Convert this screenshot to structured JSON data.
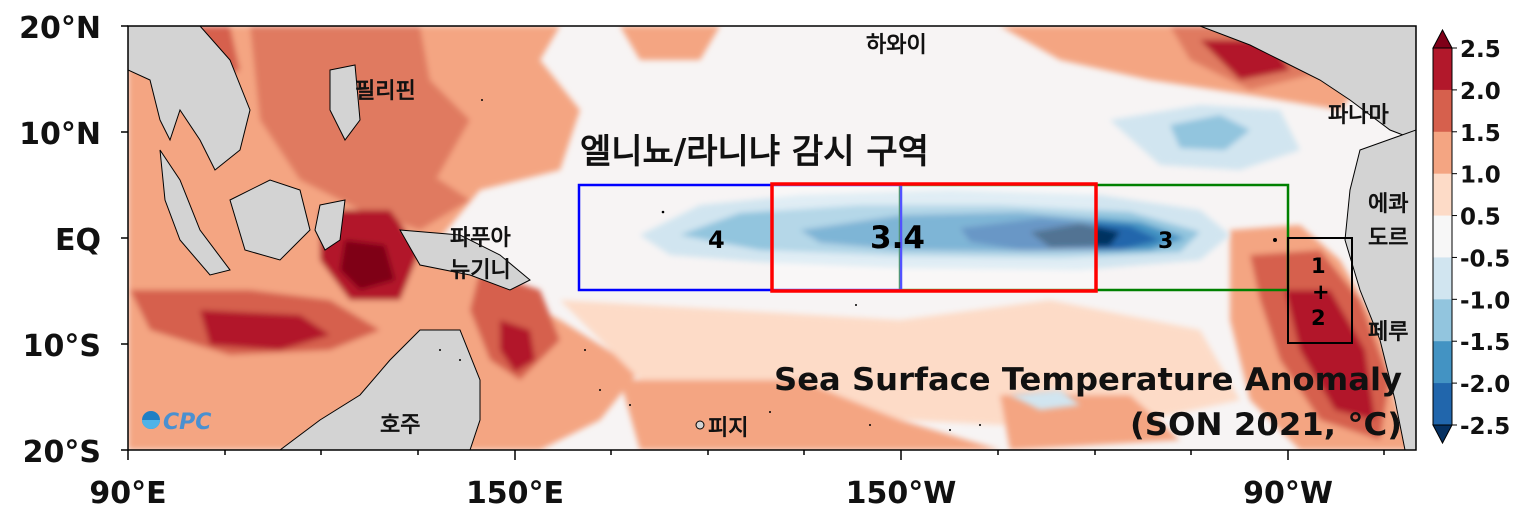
{
  "map": {
    "y_ticks": [
      "20°N",
      "10°N",
      "EQ",
      "10°S",
      "20°S"
    ],
    "x_ticks": [
      "90°E",
      "150°E",
      "150°W",
      "90°W"
    ],
    "title": "엘니뇨/라니냐 감시 구역",
    "places": {
      "philippines": "필리핀",
      "hawaii": "하와이",
      "panama": "파나마",
      "papua_line1": "파푸아",
      "papua_line2": "뉴기니",
      "ecuador_line1": "에콰",
      "ecuador_line2": "도르",
      "peru": "페루",
      "australia": "호주",
      "fiji": "피지"
    },
    "regions": {
      "nino4": "4",
      "nino34": "3.4",
      "nino3": "3",
      "nino12_a": "1",
      "nino12_b": "+",
      "nino12_c": "2"
    },
    "region_colors": {
      "nino4": "#0000ff",
      "nino34": "#ff0000",
      "nino3": "#008000",
      "nino12": "#000000"
    },
    "caption_line1": "Sea Surface Temperature Anomaly",
    "caption_line2": "(SON 2021, °C)",
    "logo": "CPC"
  },
  "colorbar": {
    "labels": [
      "2.5",
      "2.0",
      "1.5",
      "1.0",
      "0.5",
      "-0.5",
      "-1.0",
      "-1.5",
      "-2.0",
      "-2.5"
    ],
    "colors": [
      "#7f0018",
      "#b2182b",
      "#d6604d",
      "#f4a582",
      "#fddbc7",
      "#f7f7f7",
      "#d1e5f0",
      "#92c5de",
      "#4393c3",
      "#2166ac",
      "#053061"
    ]
  }
}
